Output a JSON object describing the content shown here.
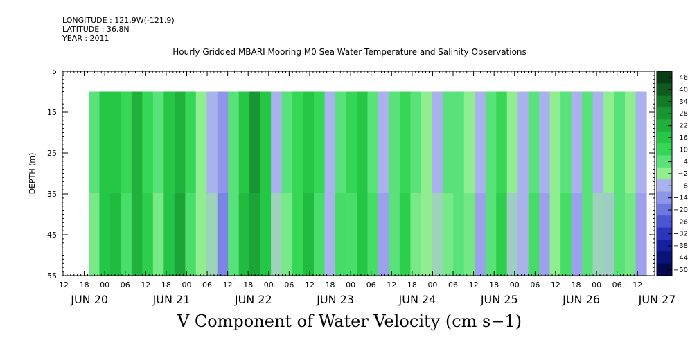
{
  "meta": {
    "longitude": "LONGITUDE : 121.9W(-121.9)",
    "latitude": "LATITUDE : 36.8N",
    "year": "YEAR : 2011"
  },
  "chart_data": {
    "type": "heatmap",
    "title": "Hourly Gridded MBARI Mooring M0 Sea Water Temperature and Salinity Observations",
    "xlabel": "",
    "ylabel": "DEPTH (m)",
    "footer": "V Component of Water Velocity (cm s−1)",
    "y_ticks": [
      5,
      15,
      25,
      35,
      45,
      55
    ],
    "ylim": [
      55,
      5
    ],
    "data_depth_range": [
      10,
      55
    ],
    "x_hour_labels": [
      "12",
      "18",
      "00",
      "06",
      "12",
      "18",
      "00",
      "06",
      "12",
      "18",
      "00",
      "06",
      "12",
      "18",
      "00",
      "06",
      "12",
      "18",
      "00",
      "06",
      "12",
      "18",
      "00",
      "06",
      "12",
      "18",
      "00",
      "06",
      "12"
    ],
    "x_day_labels": [
      "JUN 20",
      "JUN 21",
      "JUN 22",
      "JUN 23",
      "JUN 24",
      "JUN 25",
      "JUN 26",
      "JUN 27"
    ],
    "colorbar": {
      "labels": [
        "46",
        "40",
        "34",
        "28",
        "22",
        "16",
        "10",
        "4",
        "−2",
        "−8",
        "−14",
        "−20",
        "−26",
        "−32",
        "−38",
        "−44",
        "−50"
      ],
      "colors": [
        "#0b3d14",
        "#0f5a1e",
        "#137a28",
        "#199633",
        "#1fb13c",
        "#25c745",
        "#36d756",
        "#5ae27a",
        "#90ee90",
        "#aab2ee",
        "#8e96ea",
        "#6c78e0",
        "#4a56d4",
        "#2a36c0",
        "#1420a0",
        "#0a1478",
        "#050a50"
      ]
    },
    "bands_day_hour_value": [
      [
        0.0,
        8
      ],
      [
        0.15,
        16
      ],
      [
        0.3,
        20
      ],
      [
        0.45,
        12
      ],
      [
        0.6,
        22
      ],
      [
        0.75,
        14
      ],
      [
        0.9,
        4
      ],
      [
        1.05,
        18
      ],
      [
        1.2,
        24
      ],
      [
        1.35,
        10
      ],
      [
        1.5,
        2
      ],
      [
        1.65,
        -6
      ],
      [
        1.8,
        -10
      ],
      [
        1.95,
        6
      ],
      [
        2.1,
        18
      ],
      [
        2.25,
        28
      ],
      [
        2.4,
        20
      ],
      [
        2.55,
        -8
      ],
      [
        2.7,
        4
      ],
      [
        2.85,
        12
      ],
      [
        3.0,
        16
      ],
      [
        3.15,
        10
      ],
      [
        3.3,
        -6
      ],
      [
        3.45,
        6
      ],
      [
        3.6,
        14
      ],
      [
        3.75,
        18
      ],
      [
        3.9,
        8
      ],
      [
        4.05,
        -8
      ],
      [
        4.2,
        4
      ],
      [
        4.35,
        12
      ],
      [
        4.5,
        6
      ],
      [
        4.65,
        2
      ],
      [
        4.8,
        -6
      ],
      [
        4.95,
        4
      ],
      [
        5.1,
        8
      ],
      [
        5.25,
        2
      ],
      [
        5.4,
        -4
      ],
      [
        5.55,
        6
      ],
      [
        5.7,
        10
      ],
      [
        5.85,
        2
      ],
      [
        6.0,
        -6
      ],
      [
        6.15,
        4
      ],
      [
        6.3,
        -8
      ],
      [
        6.45,
        2
      ],
      [
        6.6,
        6
      ],
      [
        6.75,
        -4
      ],
      [
        6.9,
        4
      ],
      [
        7.05,
        -6
      ],
      [
        7.2,
        2
      ],
      [
        7.35,
        8
      ],
      [
        7.5,
        2
      ],
      [
        7.65,
        -6
      ]
    ]
  }
}
